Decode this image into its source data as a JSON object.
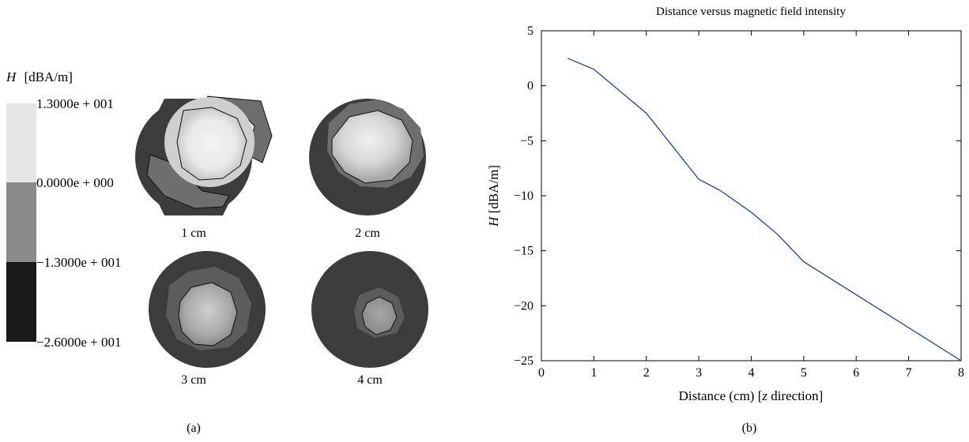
{
  "panel_a": {
    "label": "(a)",
    "colorbar": {
      "title_symbol": "H",
      "title_unit": "[dBA/m]",
      "levels": [
        {
          "label": "1.3000e + 001",
          "color": "#e6e6e6"
        },
        {
          "label": "0.0000e + 000",
          "color": "#8a8a8a"
        },
        {
          "label": "−1.3000e + 001",
          "color": "#1a1a1a"
        },
        {
          "label": "−2.6000e + 001",
          "color": ""
        }
      ]
    },
    "discs": [
      {
        "label": "1 cm"
      },
      {
        "label": "2 cm"
      },
      {
        "label": "3 cm"
      },
      {
        "label": "4 cm"
      }
    ]
  },
  "panel_b": {
    "label": "(b)"
  },
  "chart_data": {
    "type": "line",
    "title": "Distance versus magnetic field intensity",
    "xlabel": "Distance (cm) [z direction]",
    "ylabel": "H [dBA/m]",
    "xlim": [
      0,
      8
    ],
    "ylim": [
      -25,
      5
    ],
    "xticks": [
      "0",
      "1",
      "2",
      "3",
      "4",
      "5",
      "6",
      "7",
      "8"
    ],
    "yticks": [
      "5",
      "0",
      "−5",
      "−10",
      "−15",
      "−20",
      "−25"
    ],
    "series": [
      {
        "color": "#1f3f9f",
        "x": [
          0.5,
          1.0,
          2.0,
          3.0,
          3.4,
          4.0,
          4.5,
          5.0,
          8.0
        ],
        "y": [
          2.5,
          1.5,
          -2.5,
          -8.5,
          -9.5,
          -11.5,
          -13.5,
          -16.0,
          -25.0
        ]
      }
    ],
    "grid": false
  }
}
